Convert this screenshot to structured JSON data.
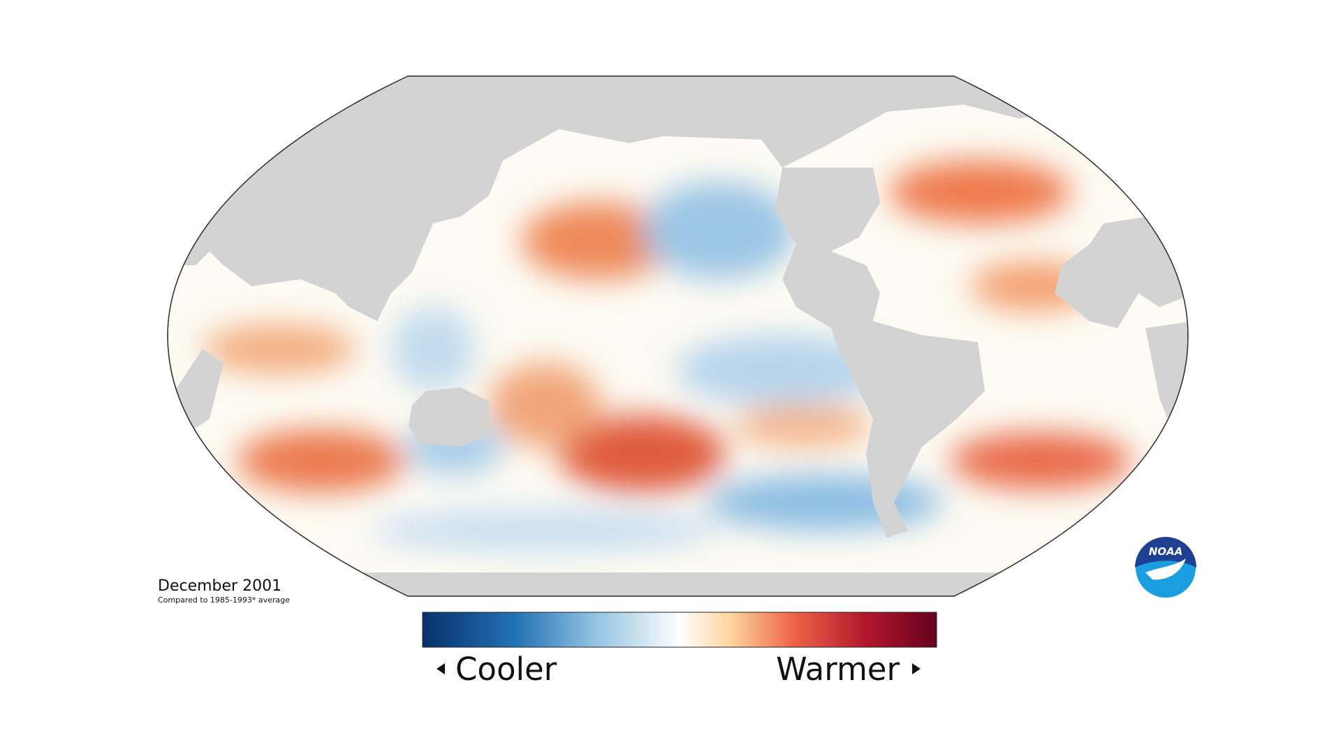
{
  "title": "December 2001",
  "subtitle": "Compared to 1985-1993* average",
  "legend": {
    "low": "Cooler",
    "high": "Warmer"
  },
  "logo": "NOAA"
}
